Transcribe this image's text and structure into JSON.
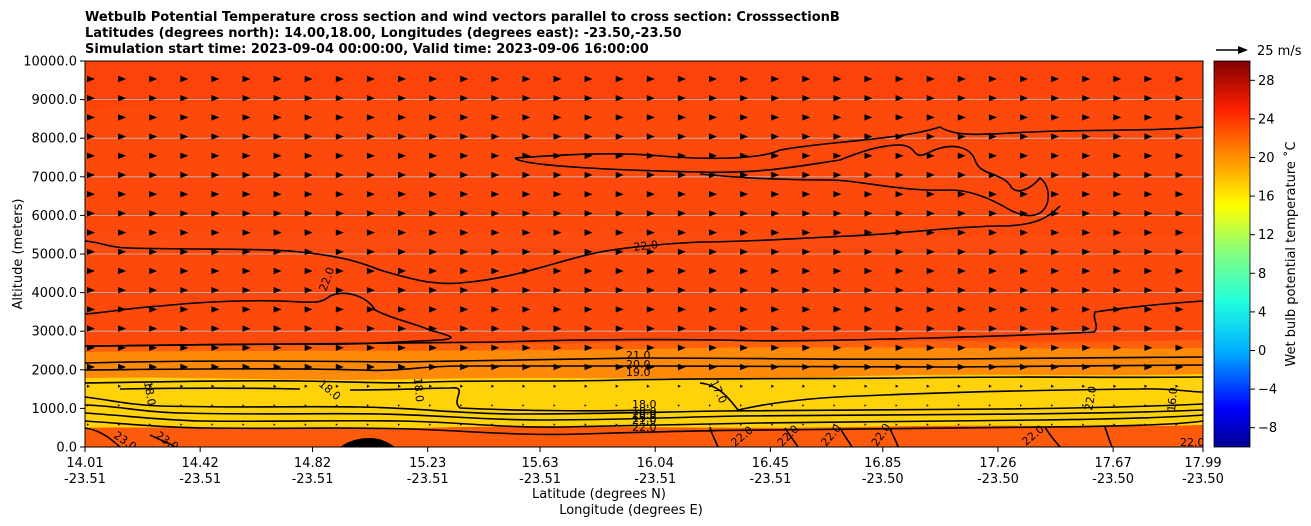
{
  "chart_data": {
    "type": "heatmap",
    "title_lines": [
      "Wetbulb Potential Temperature cross section and wind vectors parallel to cross section: CrosssectionB",
      "Latitudes (degrees north): 14.00,18.00, Longitudes (degrees east): -23.50,-23.50",
      "Simulation start time: 2023-09-04 00:00:00, Valid time: 2023-09-06 16:00:00"
    ],
    "xlabel": "Latitude (degrees N)",
    "xlabel2": "Longitude (degrees E)",
    "ylabel": "Altitude (meters)",
    "x_range": [
      14.01,
      17.99
    ],
    "y_range": [
      0,
      10000
    ],
    "x_ticks": [
      {
        "lat": "14.01",
        "lon": "-23.51"
      },
      {
        "lat": "14.42",
        "lon": "-23.51"
      },
      {
        "lat": "14.82",
        "lon": "-23.51"
      },
      {
        "lat": "15.23",
        "lon": "-23.51"
      },
      {
        "lat": "15.63",
        "lon": "-23.51"
      },
      {
        "lat": "16.04",
        "lon": "-23.51"
      },
      {
        "lat": "16.45",
        "lon": "-23.51"
      },
      {
        "lat": "16.85",
        "lon": "-23.50"
      },
      {
        "lat": "17.26",
        "lon": "-23.50"
      },
      {
        "lat": "17.67",
        "lon": "-23.50"
      },
      {
        "lat": "17.99",
        "lon": "-23.50"
      }
    ],
    "y_ticks": [
      "0.0",
      "1000.0",
      "2000.0",
      "3000.0",
      "4000.0",
      "5000.0",
      "6000.0",
      "7000.0",
      "8000.0",
      "9000.0",
      "10000.0"
    ],
    "colorbar": {
      "label": "Wet bulb potential temperature ˚C",
      "range": [
        -10,
        30
      ],
      "ticks": [
        "−8",
        "−4",
        "0",
        "4",
        "8",
        "12",
        "16",
        "20",
        "24",
        "28"
      ]
    },
    "quiver_key": "25 m/s",
    "contour_labels": [
      "22.0",
      "22.0",
      "21.0",
      "20.0",
      "19.0",
      "18.0",
      "18.0",
      "18.0",
      "18.0",
      "17.0",
      "18.0",
      "19.0",
      "20.0",
      "21.0",
      "22.0",
      "23.0",
      "23.0",
      "22.0",
      "22.0",
      "22.0",
      "22.0",
      "22.0",
      "22.0",
      "22.0",
      "16.0"
    ],
    "colors": {
      "background_field": "#fd4a0c",
      "warm_band": "#ff8a08",
      "yellow_layer": "#ffd20a",
      "terrain": "#000000",
      "contour": "#000000"
    }
  }
}
